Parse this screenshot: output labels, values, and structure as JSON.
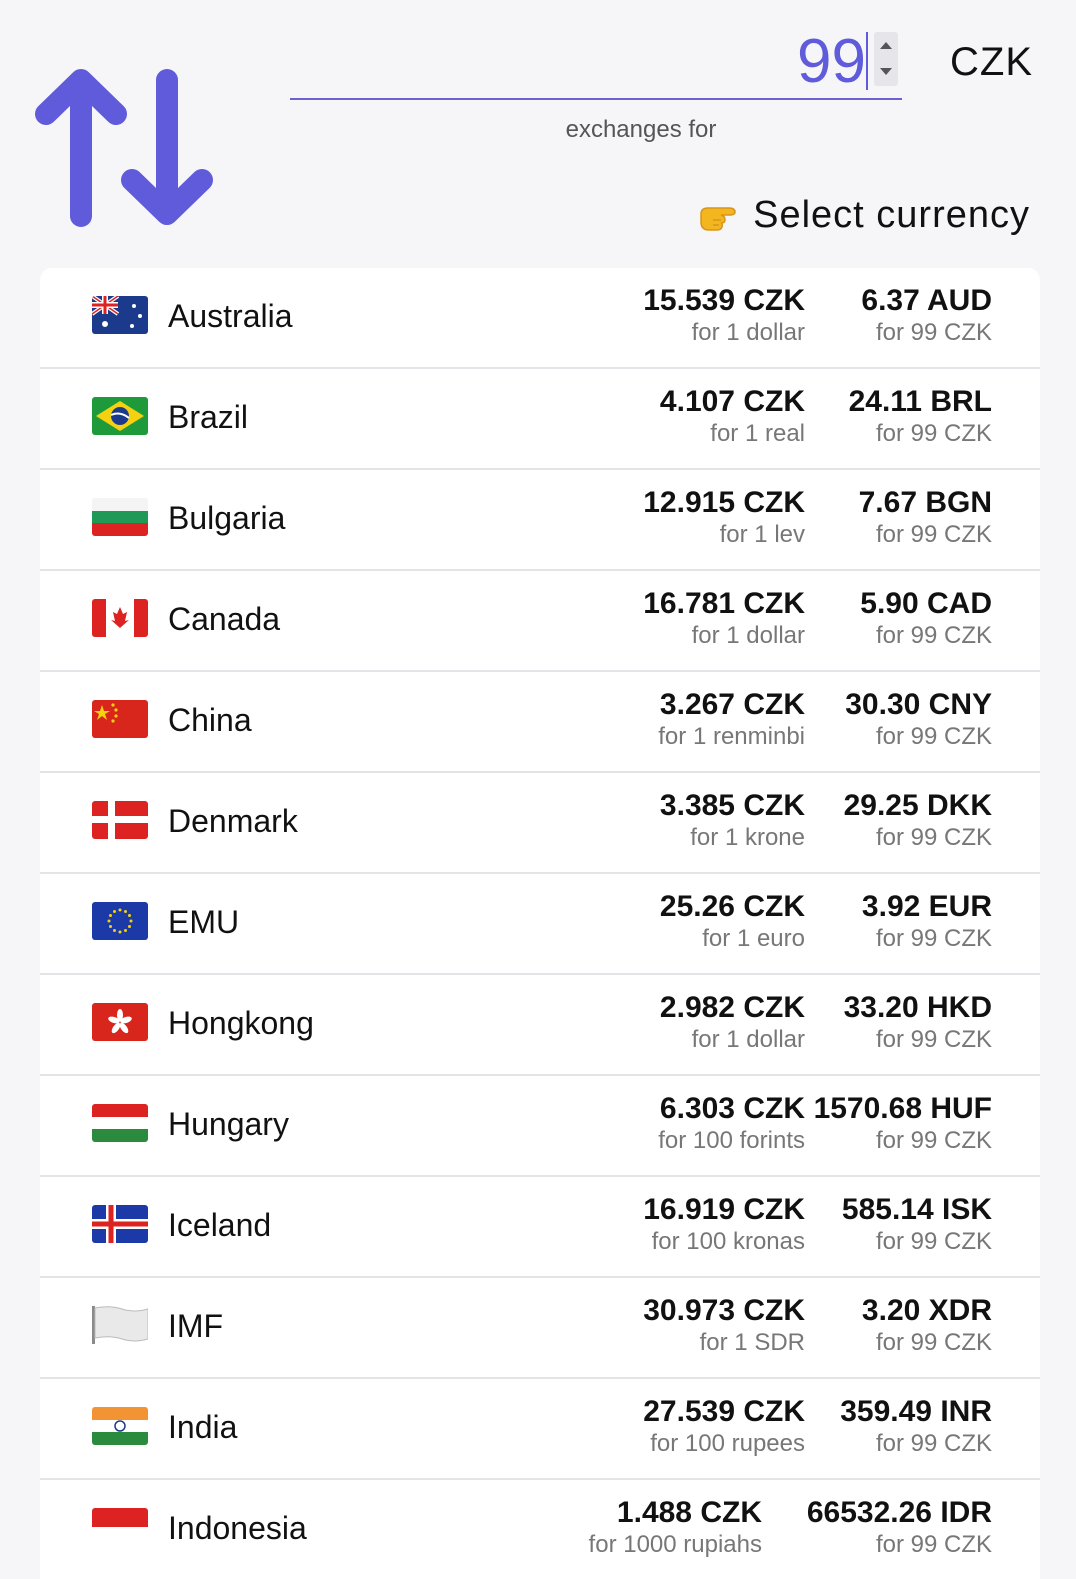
{
  "header": {
    "amount_value": "99",
    "currency_code": "CZK",
    "exchanges_label": "exchanges for",
    "select_label": "Select currency",
    "accent_color": "#5f5bdb"
  },
  "rows": [
    {
      "country": "Australia",
      "flag": "australia-flag-icon",
      "rate": "15.539 CZK",
      "rate_unit": "for 1 dollar",
      "converted": "6.37 AUD",
      "converted_unit": "for 99 CZK"
    },
    {
      "country": "Brazil",
      "flag": "brazil-flag-icon",
      "rate": "4.107 CZK",
      "rate_unit": "for 1 real",
      "converted": "24.11 BRL",
      "converted_unit": "for 99 CZK"
    },
    {
      "country": "Bulgaria",
      "flag": "bulgaria-flag-icon",
      "rate": "12.915 CZK",
      "rate_unit": "for 1 lev",
      "converted": "7.67 BGN",
      "converted_unit": "for 99 CZK"
    },
    {
      "country": "Canada",
      "flag": "canada-flag-icon",
      "rate": "16.781 CZK",
      "rate_unit": "for 1 dollar",
      "converted": "5.90 CAD",
      "converted_unit": "for 99 CZK"
    },
    {
      "country": "China",
      "flag": "china-flag-icon",
      "rate": "3.267 CZK",
      "rate_unit": "for 1 renminbi",
      "converted": "30.30 CNY",
      "converted_unit": "for 99 CZK"
    },
    {
      "country": "Denmark",
      "flag": "denmark-flag-icon",
      "rate": "3.385 CZK",
      "rate_unit": "for 1 krone",
      "converted": "29.25 DKK",
      "converted_unit": "for 99 CZK"
    },
    {
      "country": "EMU",
      "flag": "eu-flag-icon",
      "rate": "25.26 CZK",
      "rate_unit": "for 1 euro",
      "converted": "3.92 EUR",
      "converted_unit": "for 99 CZK"
    },
    {
      "country": "Hongkong",
      "flag": "hongkong-flag-icon",
      "rate": "2.982 CZK",
      "rate_unit": "for 1 dollar",
      "converted": "33.20 HKD",
      "converted_unit": "for 99 CZK"
    },
    {
      "country": "Hungary",
      "flag": "hungary-flag-icon",
      "rate": "6.303 CZK",
      "rate_unit": "for 100 forints",
      "converted": "1570.68 HUF",
      "converted_unit": "for 99 CZK"
    },
    {
      "country": "Iceland",
      "flag": "iceland-flag-icon",
      "rate": "16.919 CZK",
      "rate_unit": "for 100 kronas",
      "converted": "585.14 ISK",
      "converted_unit": "for 99 CZK"
    },
    {
      "country": "IMF",
      "flag": "white-flag-icon",
      "rate": "30.973 CZK",
      "rate_unit": "for 1 SDR",
      "converted": "3.20 XDR",
      "converted_unit": "for 99 CZK"
    },
    {
      "country": "India",
      "flag": "india-flag-icon",
      "rate": "27.539 CZK",
      "rate_unit": "for 100 rupees",
      "converted": "359.49 INR",
      "converted_unit": "for 99 CZK"
    },
    {
      "country": "Indonesia",
      "flag": "indonesia-flag-icon",
      "rate": "1.488 CZK",
      "rate_unit": "for 1000 rupiahs",
      "converted": "66532.26 IDR",
      "converted_unit": "for 99 CZK"
    }
  ]
}
